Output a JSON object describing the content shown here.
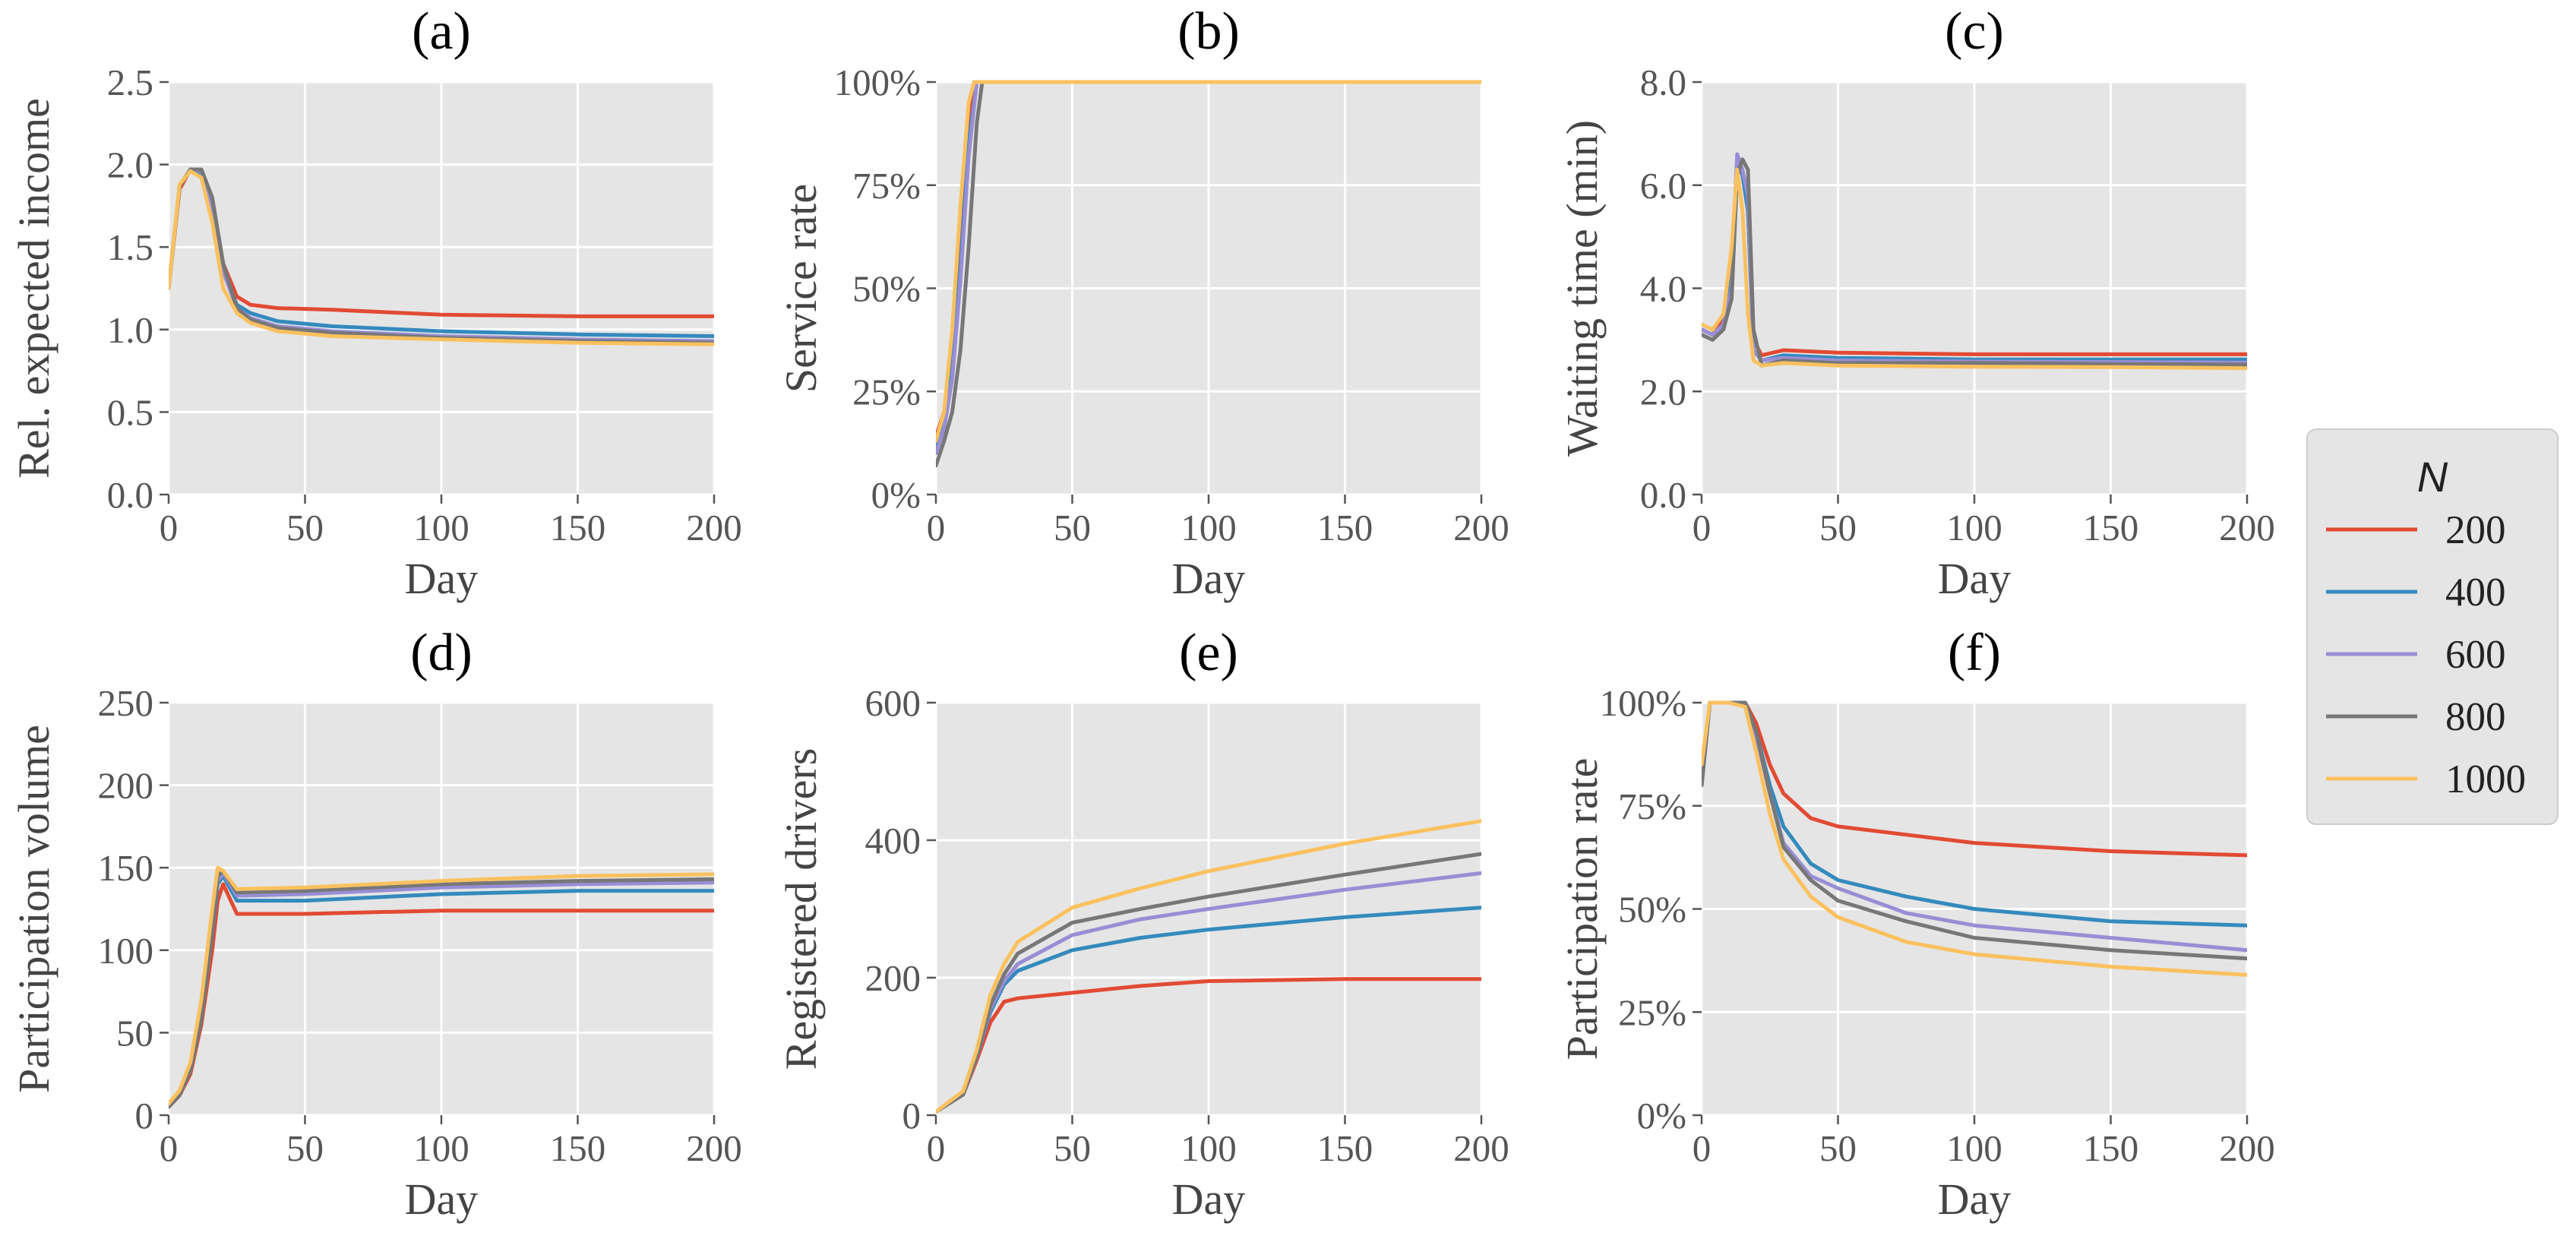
{
  "legend": {
    "title": "N",
    "placement": "right",
    "entries": [
      {
        "label": "200",
        "color": "#E24A33"
      },
      {
        "label": "400",
        "color": "#348ABD"
      },
      {
        "label": "600",
        "color": "#988ED5"
      },
      {
        "label": "800",
        "color": "#777777"
      },
      {
        "label": "1000",
        "color": "#FBC15E"
      }
    ]
  },
  "chart_data": [
    {
      "id": "a",
      "type": "line",
      "title": "(a)",
      "xlabel": "Day",
      "ylabel": "Rel. expected income",
      "xlim": [
        0,
        200
      ],
      "ylim": [
        0,
        2.5
      ],
      "xticks": [
        0,
        50,
        100,
        150,
        200
      ],
      "yticks": [
        0,
        0.5,
        1.0,
        1.5,
        2.0,
        2.5
      ],
      "ytick_labels": [
        "0.0",
        "0.5",
        "1.0",
        "1.5",
        "2.0",
        "2.5"
      ],
      "series": [
        {
          "name": "200",
          "x": [
            0,
            4,
            8,
            12,
            16,
            20,
            25,
            30,
            40,
            60,
            100,
            150,
            200
          ],
          "y": [
            1.25,
            1.85,
            1.97,
            1.95,
            1.75,
            1.4,
            1.2,
            1.15,
            1.13,
            1.12,
            1.09,
            1.08,
            1.08
          ]
        },
        {
          "name": "400",
          "x": [
            0,
            4,
            8,
            12,
            16,
            20,
            25,
            30,
            40,
            60,
            100,
            150,
            200
          ],
          "y": [
            1.25,
            1.87,
            1.97,
            1.95,
            1.75,
            1.35,
            1.15,
            1.1,
            1.05,
            1.02,
            0.99,
            0.97,
            0.96
          ]
        },
        {
          "name": "600",
          "x": [
            0,
            4,
            8,
            12,
            16,
            20,
            25,
            30,
            40,
            60,
            100,
            150,
            200
          ],
          "y": [
            1.25,
            1.87,
            1.97,
            1.96,
            1.75,
            1.35,
            1.13,
            1.07,
            1.02,
            0.99,
            0.96,
            0.94,
            0.93
          ]
        },
        {
          "name": "800",
          "x": [
            0,
            4,
            8,
            12,
            16,
            20,
            25,
            30,
            40,
            60,
            100,
            150,
            200
          ],
          "y": [
            1.25,
            1.87,
            1.97,
            1.97,
            1.8,
            1.4,
            1.13,
            1.06,
            1.01,
            0.98,
            0.95,
            0.93,
            0.92
          ]
        },
        {
          "name": "1000",
          "x": [
            0,
            4,
            8,
            12,
            16,
            20,
            25,
            30,
            40,
            60,
            100,
            150,
            200
          ],
          "y": [
            1.25,
            1.88,
            1.96,
            1.92,
            1.65,
            1.25,
            1.1,
            1.04,
            0.99,
            0.96,
            0.94,
            0.92,
            0.91
          ]
        }
      ]
    },
    {
      "id": "b",
      "type": "line",
      "title": "(b)",
      "xlabel": "Day",
      "ylabel": "Service rate",
      "xlim": [
        0,
        200
      ],
      "ylim": [
        0,
        100
      ],
      "xticks": [
        0,
        50,
        100,
        150,
        200
      ],
      "yticks": [
        0,
        25,
        50,
        75,
        100
      ],
      "ytick_labels": [
        "0%",
        "25%",
        "50%",
        "75%",
        "100%"
      ],
      "series": [
        {
          "name": "200",
          "x": [
            0,
            3,
            6,
            9,
            12,
            14,
            200
          ],
          "y": [
            14,
            20,
            35,
            60,
            90,
            100,
            100
          ]
        },
        {
          "name": "400",
          "x": [
            0,
            3,
            6,
            9,
            12,
            15,
            200
          ],
          "y": [
            11,
            17,
            30,
            55,
            85,
            100,
            100
          ]
        },
        {
          "name": "600",
          "x": [
            0,
            3,
            6,
            9,
            12,
            15,
            200
          ],
          "y": [
            10,
            16,
            28,
            52,
            82,
            100,
            100
          ]
        },
        {
          "name": "800",
          "x": [
            0,
            3,
            6,
            9,
            12,
            15,
            17,
            200
          ],
          "y": [
            7,
            13,
            20,
            35,
            60,
            90,
            100,
            100
          ]
        },
        {
          "name": "1000",
          "x": [
            0,
            3,
            6,
            9,
            12,
            14,
            200
          ],
          "y": [
            13,
            20,
            40,
            70,
            95,
            100,
            100
          ]
        }
      ]
    },
    {
      "id": "c",
      "type": "line",
      "title": "(c)",
      "xlabel": "Day",
      "ylabel": "Waiting time (min)",
      "xlim": [
        0,
        200
      ],
      "ylim": [
        0,
        8.0
      ],
      "xticks": [
        0,
        50,
        100,
        150,
        200
      ],
      "yticks": [
        0,
        2.0,
        4.0,
        6.0,
        8.0
      ],
      "ytick_labels": [
        "0.0",
        "2.0",
        "4.0",
        "6.0",
        "8.0"
      ],
      "series": [
        {
          "name": "200",
          "x": [
            0,
            4,
            8,
            11,
            13,
            15,
            17,
            19,
            22,
            30,
            50,
            100,
            150,
            200
          ],
          "y": [
            3.2,
            3.1,
            3.4,
            4.5,
            6.4,
            6.2,
            5.5,
            3.0,
            2.7,
            2.8,
            2.75,
            2.72,
            2.72,
            2.72
          ]
        },
        {
          "name": "400",
          "x": [
            0,
            4,
            8,
            11,
            13,
            15,
            17,
            19,
            22,
            30,
            50,
            100,
            150,
            200
          ],
          "y": [
            3.2,
            3.1,
            3.3,
            4.2,
            6.5,
            6.2,
            5.5,
            2.8,
            2.6,
            2.7,
            2.65,
            2.62,
            2.62,
            2.62
          ]
        },
        {
          "name": "600",
          "x": [
            0,
            4,
            8,
            11,
            13,
            15,
            17,
            19,
            22,
            30,
            50,
            100,
            150,
            200
          ],
          "y": [
            3.2,
            3.1,
            3.3,
            4.0,
            6.6,
            6.3,
            5.8,
            2.8,
            2.6,
            2.65,
            2.6,
            2.58,
            2.57,
            2.56
          ]
        },
        {
          "name": "800",
          "x": [
            0,
            4,
            8,
            11,
            13,
            15,
            17,
            19,
            22,
            30,
            50,
            100,
            150,
            200
          ],
          "y": [
            3.1,
            3.0,
            3.2,
            3.8,
            6.2,
            6.5,
            6.3,
            3.2,
            2.5,
            2.6,
            2.55,
            2.55,
            2.53,
            2.52
          ]
        },
        {
          "name": "1000",
          "x": [
            0,
            4,
            8,
            11,
            13,
            15,
            17,
            19,
            22,
            30,
            50,
            100,
            150,
            200
          ],
          "y": [
            3.3,
            3.2,
            3.5,
            4.8,
            6.3,
            5.5,
            3.5,
            2.6,
            2.5,
            2.55,
            2.5,
            2.48,
            2.47,
            2.45
          ]
        }
      ]
    },
    {
      "id": "d",
      "type": "line",
      "title": "(d)",
      "xlabel": "Day",
      "ylabel": "Participation volume",
      "xlim": [
        0,
        200
      ],
      "ylim": [
        0,
        250
      ],
      "xticks": [
        0,
        50,
        100,
        150,
        200
      ],
      "yticks": [
        0,
        50,
        100,
        150,
        200,
        250
      ],
      "ytick_labels": [
        "0",
        "50",
        "100",
        "150",
        "200",
        "250"
      ],
      "series": [
        {
          "name": "200",
          "x": [
            0,
            4,
            8,
            12,
            16,
            18,
            20,
            25,
            50,
            100,
            150,
            200
          ],
          "y": [
            5,
            12,
            25,
            55,
            100,
            130,
            140,
            122,
            122,
            124,
            124,
            124
          ]
        },
        {
          "name": "400",
          "x": [
            0,
            4,
            8,
            12,
            16,
            18,
            20,
            25,
            50,
            100,
            150,
            200
          ],
          "y": [
            6,
            13,
            28,
            60,
            110,
            140,
            145,
            130,
            130,
            134,
            136,
            136
          ]
        },
        {
          "name": "600",
          "x": [
            0,
            4,
            8,
            12,
            16,
            18,
            20,
            25,
            50,
            100,
            150,
            200
          ],
          "y": [
            6,
            14,
            30,
            62,
            115,
            142,
            147,
            133,
            134,
            138,
            140,
            141
          ]
        },
        {
          "name": "800",
          "x": [
            0,
            4,
            8,
            12,
            16,
            18,
            20,
            25,
            50,
            100,
            150,
            200
          ],
          "y": [
            5,
            12,
            27,
            58,
            110,
            145,
            148,
            135,
            136,
            140,
            142,
            143
          ]
        },
        {
          "name": "1000",
          "x": [
            0,
            4,
            8,
            12,
            16,
            18,
            20,
            25,
            50,
            100,
            150,
            200
          ],
          "y": [
            7,
            15,
            32,
            70,
            125,
            150,
            148,
            137,
            138,
            142,
            145,
            146
          ]
        }
      ]
    },
    {
      "id": "e",
      "type": "line",
      "title": "(e)",
      "xlabel": "Day",
      "ylabel": "Registered drivers",
      "xlim": [
        0,
        200
      ],
      "ylim": [
        0,
        600
      ],
      "xticks": [
        0,
        50,
        100,
        150,
        200
      ],
      "yticks": [
        0,
        200,
        400,
        600
      ],
      "ytick_labels": [
        "0",
        "200",
        "400",
        "600"
      ],
      "series": [
        {
          "name": "200",
          "x": [
            0,
            10,
            15,
            20,
            25,
            30,
            50,
            75,
            100,
            150,
            200
          ],
          "y": [
            5,
            30,
            80,
            135,
            165,
            170,
            178,
            188,
            195,
            198,
            198
          ]
        },
        {
          "name": "400",
          "x": [
            0,
            10,
            15,
            20,
            25,
            30,
            50,
            75,
            100,
            150,
            200
          ],
          "y": [
            5,
            30,
            85,
            150,
            190,
            210,
            240,
            258,
            270,
            288,
            302
          ]
        },
        {
          "name": "600",
          "x": [
            0,
            10,
            15,
            20,
            25,
            30,
            50,
            75,
            100,
            150,
            200
          ],
          "y": [
            5,
            30,
            85,
            155,
            195,
            220,
            262,
            285,
            300,
            328,
            352
          ]
        },
        {
          "name": "800",
          "x": [
            0,
            10,
            15,
            20,
            25,
            30,
            50,
            75,
            100,
            150,
            200
          ],
          "y": [
            5,
            30,
            85,
            160,
            205,
            235,
            280,
            300,
            318,
            350,
            380
          ]
        },
        {
          "name": "1000",
          "x": [
            0,
            10,
            15,
            20,
            25,
            30,
            50,
            75,
            100,
            150,
            200
          ],
          "y": [
            5,
            35,
            95,
            175,
            220,
            252,
            302,
            330,
            355,
            395,
            428
          ]
        }
      ]
    },
    {
      "id": "f",
      "type": "line",
      "title": "(f)",
      "xlabel": "Day",
      "ylabel": "Participation rate",
      "xlim": [
        0,
        200
      ],
      "ylim": [
        0,
        100
      ],
      "xticks": [
        0,
        50,
        100,
        150,
        200
      ],
      "yticks": [
        0,
        25,
        50,
        75,
        100
      ],
      "ytick_labels": [
        "0%",
        "25%",
        "50%",
        "75%",
        "100%"
      ],
      "series": [
        {
          "name": "200",
          "x": [
            0,
            3,
            10,
            16,
            20,
            25,
            30,
            40,
            50,
            75,
            100,
            150,
            200
          ],
          "y": [
            80,
            100,
            100,
            100,
            95,
            85,
            78,
            72,
            70,
            68,
            66,
            64,
            63
          ]
        },
        {
          "name": "400",
          "x": [
            0,
            3,
            10,
            16,
            20,
            25,
            30,
            40,
            50,
            75,
            100,
            150,
            200
          ],
          "y": [
            80,
            100,
            100,
            100,
            93,
            80,
            70,
            61,
            57,
            53,
            50,
            47,
            46
          ]
        },
        {
          "name": "600",
          "x": [
            0,
            3,
            10,
            16,
            20,
            25,
            30,
            40,
            50,
            75,
            100,
            150,
            200
          ],
          "y": [
            80,
            100,
            100,
            100,
            92,
            78,
            66,
            58,
            55,
            49,
            46,
            43,
            40
          ]
        },
        {
          "name": "800",
          "x": [
            0,
            3,
            10,
            16,
            20,
            25,
            30,
            40,
            50,
            75,
            100,
            150,
            200
          ],
          "y": [
            80,
            100,
            100,
            100,
            93,
            78,
            65,
            57,
            52,
            47,
            43,
            40,
            38
          ]
        },
        {
          "name": "1000",
          "x": [
            0,
            3,
            10,
            16,
            20,
            25,
            30,
            40,
            50,
            75,
            100,
            150,
            200
          ],
          "y": [
            85,
            100,
            100,
            99,
            88,
            73,
            62,
            53,
            48,
            42,
            39,
            36,
            34
          ]
        }
      ]
    }
  ]
}
